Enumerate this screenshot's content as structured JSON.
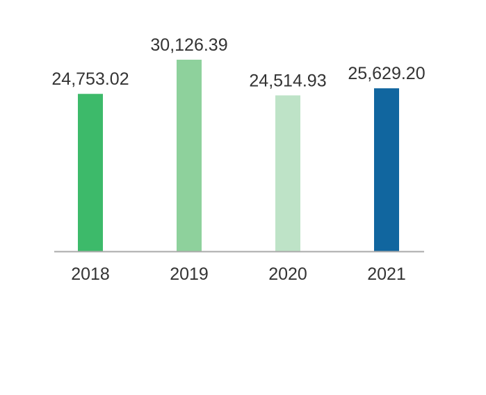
{
  "chart_data": {
    "type": "bar",
    "title": "",
    "xlabel": "",
    "ylabel": "",
    "categories": [
      "2018",
      "2019",
      "2020",
      "2021"
    ],
    "values": [
      24753.02,
      30126.39,
      24514.93,
      25629.2
    ],
    "value_labels": [
      "24,753.02",
      "30,126.39",
      "24,514.93",
      "25,629.20"
    ],
    "colors": [
      "#3dba6a",
      "#8ed19c",
      "#bee3c7",
      "#11669f"
    ],
    "axis_color": "#aaaaaa",
    "ylim": [
      0,
      30126.39
    ],
    "grid": false,
    "legend": "none"
  }
}
